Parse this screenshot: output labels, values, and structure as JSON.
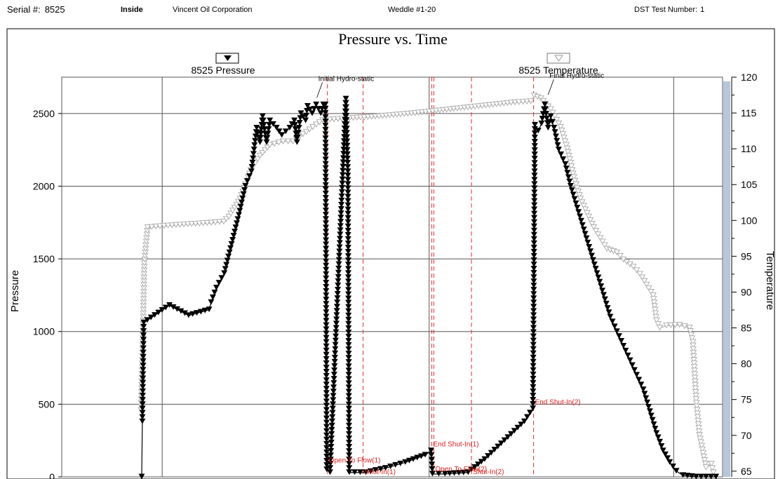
{
  "header": {
    "serial_label": "Serial #:",
    "serial_value": "8525",
    "position": "Inside",
    "company": "Vincent Oil Corporation",
    "well": "Weddle #1-20",
    "test_label": "DST Test Number:",
    "test_value": "1"
  },
  "colors": {
    "pressure": "#000000",
    "temperature": "#a8a8a8",
    "event_line": "#e03030",
    "event_label": "#e02020",
    "grid": "#555555",
    "axis_bar": "#b7c7d9"
  },
  "chart_data": {
    "type": "line",
    "title": "Pressure vs. Time",
    "grid": true,
    "y_left": {
      "label": "Pressure",
      "ylim": [
        0,
        2750
      ],
      "ticks": [
        0,
        500,
        1000,
        1500,
        2000,
        2500
      ]
    },
    "y_right": {
      "label": "Temperature",
      "ylim": [
        64.2,
        120
      ],
      "ticks": [
        65,
        70,
        75,
        80,
        85,
        90,
        95,
        100,
        105,
        110,
        115,
        120
      ]
    },
    "xlim": [
      0,
      100
    ],
    "legend": [
      {
        "name": "8525 Pressure",
        "marker": "filled-down-triangle"
      },
      {
        "name": "8525 Temperature",
        "marker": "open-down-triangle"
      }
    ],
    "series": [
      {
        "name": "8525 Pressure",
        "axis": "left",
        "points": [
          [
            12.1,
            0
          ],
          [
            12.2,
            380
          ],
          [
            12.4,
            1060
          ],
          [
            16.3,
            1180
          ],
          [
            19.2,
            1110
          ],
          [
            22.3,
            1150
          ],
          [
            22.6,
            1200
          ],
          [
            23.4,
            1300
          ],
          [
            24.6,
            1400
          ],
          [
            25.7,
            1600
          ],
          [
            26.8,
            1800
          ],
          [
            27.8,
            2000
          ],
          [
            28.7,
            2100
          ],
          [
            29.5,
            2400
          ],
          [
            30.0,
            2300
          ],
          [
            30.4,
            2480
          ],
          [
            31.0,
            2300
          ],
          [
            31.5,
            2450
          ],
          [
            32.5,
            2400
          ],
          [
            33.3,
            2350
          ],
          [
            34.5,
            2400
          ],
          [
            35.2,
            2450
          ],
          [
            35.6,
            2300
          ],
          [
            36.2,
            2500
          ],
          [
            36.9,
            2450
          ],
          [
            37.2,
            2550
          ],
          [
            37.9,
            2500
          ],
          [
            38.5,
            2560
          ],
          [
            39.2,
            2500
          ],
          [
            39.6,
            2560
          ],
          [
            39.9,
            2560
          ],
          [
            40.1,
            50
          ],
          [
            40.6,
            30
          ],
          [
            43.0,
            2600
          ],
          [
            43.3,
            2100
          ],
          [
            43.5,
            30
          ],
          [
            46.0,
            30
          ],
          [
            49.0,
            60
          ],
          [
            52.0,
            100
          ],
          [
            55.0,
            150
          ],
          [
            55.9,
            180
          ],
          [
            56.1,
            20
          ],
          [
            58.0,
            20
          ],
          [
            61.5,
            30
          ],
          [
            64.0,
            120
          ],
          [
            67.0,
            250
          ],
          [
            70.0,
            380
          ],
          [
            71.3,
            470
          ],
          [
            71.6,
            2420
          ],
          [
            72.1,
            2380
          ],
          [
            72.6,
            2430
          ],
          [
            73.1,
            2560
          ],
          [
            73.6,
            2400
          ],
          [
            74.0,
            2480
          ],
          [
            74.5,
            2400
          ],
          [
            75.2,
            2250
          ],
          [
            76.2,
            2150
          ],
          [
            77.0,
            2000
          ],
          [
            78.0,
            1850
          ],
          [
            79.0,
            1700
          ],
          [
            80.0,
            1550
          ],
          [
            81.0,
            1400
          ],
          [
            82.0,
            1250
          ],
          [
            83.0,
            1100
          ],
          [
            84.0,
            1000
          ],
          [
            85.0,
            900
          ],
          [
            86.0,
            800
          ],
          [
            87.0,
            700
          ],
          [
            88.0,
            600
          ],
          [
            89.0,
            450
          ],
          [
            90.0,
            300
          ],
          [
            91.0,
            180
          ],
          [
            92.0,
            100
          ],
          [
            93.0,
            40
          ],
          [
            94.0,
            10
          ],
          [
            96.0,
            0
          ],
          [
            99.0,
            0
          ]
        ]
      },
      {
        "name": "8525 Temperature",
        "axis": "right",
        "points": [
          [
            12.0,
            73.5
          ],
          [
            12.2,
            80
          ],
          [
            12.5,
            94
          ],
          [
            13.0,
            99
          ],
          [
            15.5,
            99.2
          ],
          [
            18.5,
            99.4
          ],
          [
            22.0,
            99.6
          ],
          [
            24.5,
            99.8
          ],
          [
            25.3,
            100.5
          ],
          [
            27.0,
            103
          ],
          [
            28.6,
            107
          ],
          [
            30.0,
            109
          ],
          [
            31.5,
            110.5
          ],
          [
            33.5,
            111
          ],
          [
            35.0,
            111
          ],
          [
            36.5,
            112
          ],
          [
            38.0,
            113
          ],
          [
            39.5,
            114
          ],
          [
            40.0,
            114
          ],
          [
            43.0,
            114.2
          ],
          [
            48.0,
            114.5
          ],
          [
            54.0,
            115
          ],
          [
            62.0,
            115.8
          ],
          [
            68.0,
            116.4
          ],
          [
            71.0,
            116.6
          ],
          [
            71.5,
            117.4
          ],
          [
            72.5,
            117
          ],
          [
            74.0,
            115.5
          ],
          [
            75.5,
            113
          ],
          [
            76.5,
            110
          ],
          [
            77.5,
            106
          ],
          [
            78.5,
            103
          ],
          [
            79.5,
            101
          ],
          [
            80.5,
            99
          ],
          [
            81.5,
            97.5
          ],
          [
            82.5,
            96
          ],
          [
            84.0,
            95.5
          ],
          [
            85.0,
            94.5
          ],
          [
            86.5,
            93.5
          ],
          [
            87.5,
            92.5
          ],
          [
            88.5,
            91
          ],
          [
            89.5,
            89.5
          ],
          [
            90.0,
            86
          ],
          [
            90.5,
            85
          ],
          [
            91.5,
            85.3
          ],
          [
            93.5,
            85.4
          ],
          [
            95.0,
            85
          ],
          [
            95.5,
            83
          ],
          [
            96.0,
            75
          ],
          [
            96.5,
            70
          ],
          [
            97.5,
            65.5
          ],
          [
            98.3,
            66
          ],
          [
            98.6,
            64.8
          ]
        ]
      }
    ],
    "events": [
      {
        "label": "Initial Hydro-static",
        "x": 38.6,
        "y": 2560,
        "line": false
      },
      {
        "label": "Open To Flow(1)",
        "x": 40.2,
        "y": 80,
        "line": true
      },
      {
        "label": "Shut-In(1)",
        "x": 45.6,
        "y": 0,
        "line": true
      },
      {
        "label": "End Shut-In(1)",
        "x": 56.0,
        "y": 190,
        "line": true
      },
      {
        "label": "Open To Flow(2)",
        "x": 56.3,
        "y": 20,
        "line": true
      },
      {
        "label": "Shut-In(2)",
        "x": 62.0,
        "y": 0,
        "line": true
      },
      {
        "label": "End Shut-In(2)",
        "x": 71.4,
        "y": 480,
        "line": true
      },
      {
        "label": "Final Hydro-static",
        "x": 73.6,
        "y": 2580,
        "line": false
      }
    ],
    "x_gridlines": [
      15.2,
      55.6,
      92.6
    ]
  }
}
